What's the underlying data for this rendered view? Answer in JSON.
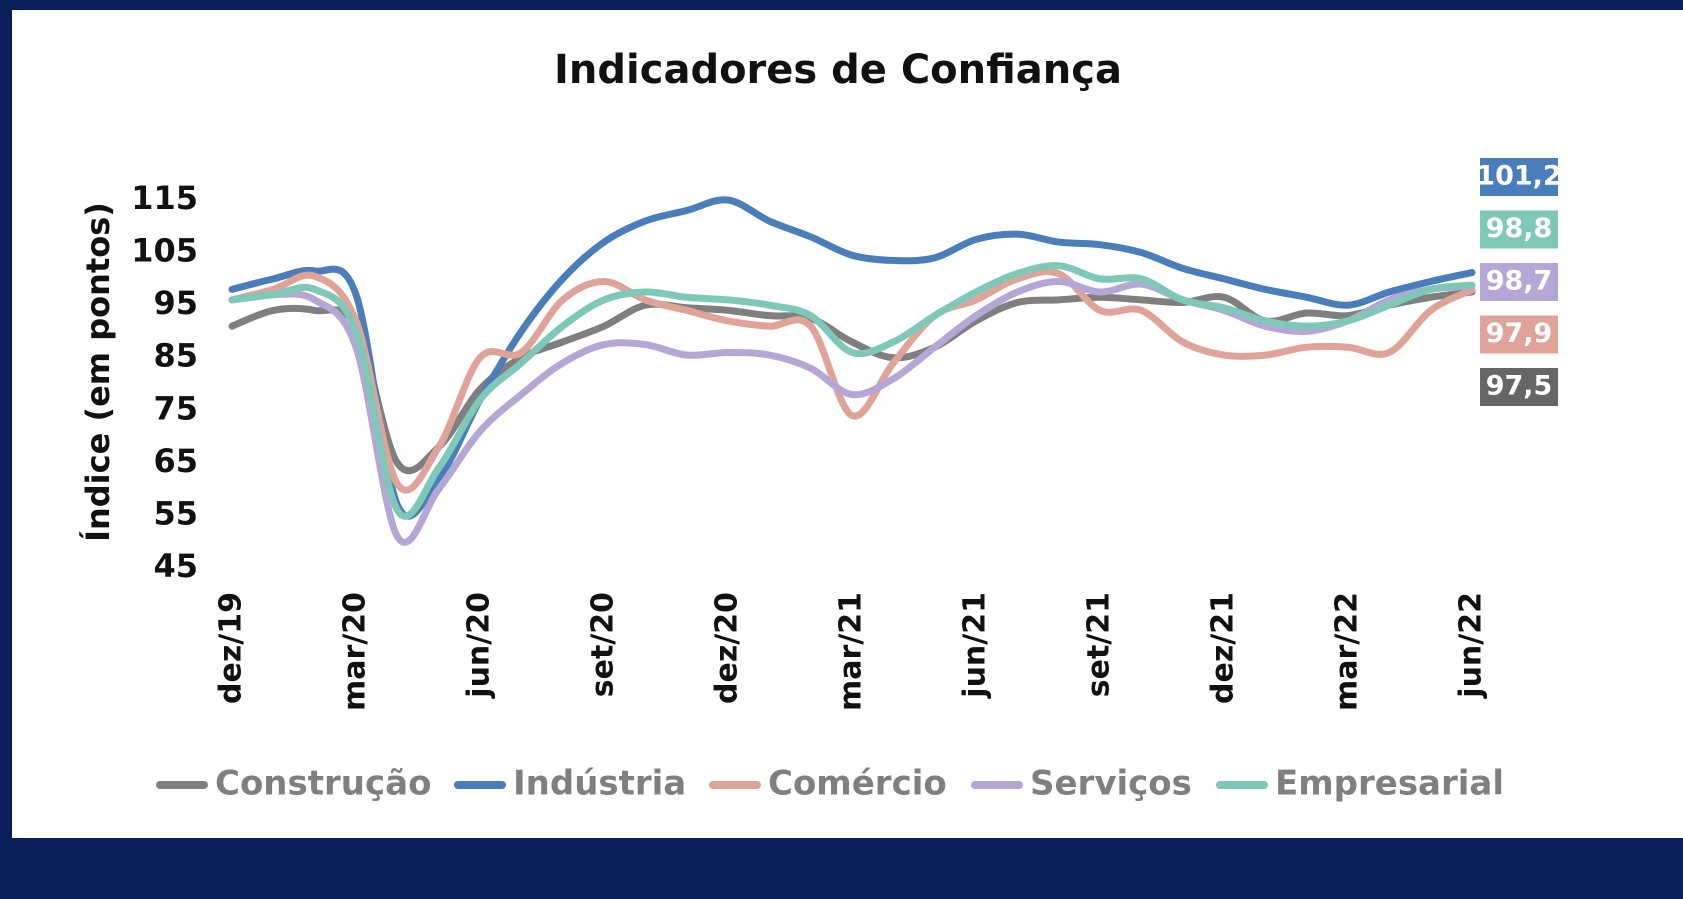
{
  "chart_data": {
    "type": "line",
    "title": "Indicadores de Confiança",
    "y_label": "Índice (em pontos)",
    "categories": [
      "dez/19",
      null,
      null,
      "mar/20",
      null,
      null,
      "jun/20",
      null,
      null,
      "set/20",
      null,
      null,
      "dez/20",
      null,
      null,
      "mar/21",
      null,
      null,
      "jun/21",
      null,
      null,
      "set/21",
      null,
      null,
      "dez/21",
      null,
      null,
      "mar/22",
      null,
      null,
      "jun/22"
    ],
    "ylim": [
      45,
      115
    ],
    "yticks": [
      45,
      55,
      65,
      75,
      85,
      95,
      105,
      115
    ],
    "grid": false,
    "legend": "bottom",
    "series": [
      {
        "name": "Construção",
        "color": "#7f7f7f",
        "label_color": "#666666",
        "values": [
          91,
          94,
          94,
          91,
          65,
          68,
          79,
          85,
          88,
          91,
          95,
          94.5,
          94,
          93,
          92.5,
          88,
          85,
          87,
          92,
          95.5,
          96,
          96.5,
          96,
          95.5,
          96.5,
          92,
          93.5,
          93,
          95,
          96.5,
          97.5
        ],
        "value_labels": [
          null,
          null,
          null,
          null,
          null,
          null,
          null,
          null,
          null,
          null,
          null,
          null,
          null,
          null,
          null,
          null,
          null,
          null,
          null,
          null,
          null,
          null,
          null,
          null,
          null,
          null,
          null,
          null,
          null,
          null,
          "97,5"
        ]
      },
      {
        "name": "Indústria",
        "color": "#4a7ebb",
        "label_color": "#4a7ebb",
        "values": [
          98,
          100,
          101.5,
          97,
          57,
          62,
          77,
          90,
          100,
          107,
          111,
          113,
          115,
          111,
          108,
          104.5,
          103.5,
          104,
          107.5,
          108.5,
          107,
          106.5,
          105,
          102,
          100,
          98,
          96.5,
          95,
          97.5,
          99.5,
          101.2
        ],
        "value_labels": [
          null,
          null,
          null,
          null,
          null,
          null,
          null,
          null,
          null,
          null,
          null,
          null,
          null,
          null,
          null,
          null,
          null,
          null,
          null,
          null,
          null,
          null,
          null,
          null,
          null,
          null,
          null,
          null,
          null,
          null,
          "101,2"
        ]
      },
      {
        "name": "Comércio",
        "color": "#e0a39a",
        "label_color": "#e0a39a",
        "values": [
          96,
          98,
          100.5,
          92,
          61,
          68,
          85,
          86,
          96,
          99.5,
          96,
          94,
          92,
          91,
          91,
          74,
          84,
          93,
          96,
          100,
          101,
          94,
          94,
          88,
          85.5,
          85.5,
          87,
          87,
          86,
          94,
          97.9
        ],
        "value_labels": [
          null,
          null,
          null,
          null,
          null,
          null,
          null,
          null,
          null,
          null,
          null,
          null,
          null,
          null,
          null,
          null,
          null,
          null,
          null,
          null,
          null,
          null,
          null,
          null,
          null,
          null,
          null,
          null,
          null,
          null,
          "97,9"
        ]
      },
      {
        "name": "Serviços",
        "color": "#b4a7d6",
        "label_color": "#b4a7d6",
        "values": [
          96,
          97,
          96,
          87,
          51,
          60,
          71,
          78,
          84,
          87.5,
          87.5,
          85.5,
          86,
          85.5,
          83,
          78,
          81,
          87,
          93,
          97.5,
          99.5,
          97.5,
          99,
          96,
          94,
          91,
          90,
          92,
          96,
          98,
          98.7
        ],
        "value_labels": [
          null,
          null,
          null,
          null,
          null,
          null,
          null,
          null,
          null,
          null,
          null,
          null,
          null,
          null,
          null,
          null,
          null,
          null,
          null,
          null,
          null,
          null,
          null,
          null,
          null,
          null,
          null,
          null,
          null,
          null,
          "98,7"
        ]
      },
      {
        "name": "Empresarial",
        "color": "#7ec8b8",
        "label_color": "#7ec8b8",
        "values": [
          96,
          97,
          98,
          90,
          56,
          64,
          77,
          84,
          91,
          96,
          97.5,
          96.5,
          96,
          95,
          93,
          86,
          88,
          93,
          97.5,
          101,
          102.5,
          100,
          100,
          96,
          94.5,
          92,
          91,
          92,
          95,
          98,
          98.8
        ],
        "value_labels": [
          null,
          null,
          null,
          null,
          null,
          null,
          null,
          null,
          null,
          null,
          null,
          null,
          null,
          null,
          null,
          null,
          null,
          null,
          null,
          null,
          null,
          null,
          null,
          null,
          null,
          null,
          null,
          null,
          null,
          null,
          "98,8"
        ]
      }
    ]
  }
}
